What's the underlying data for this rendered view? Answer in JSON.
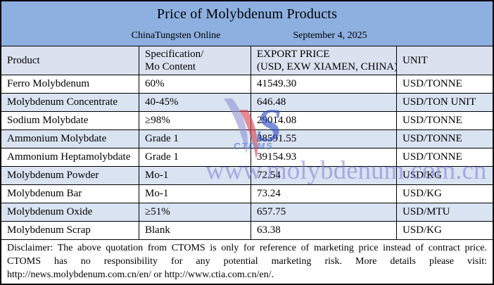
{
  "banner": {
    "title": "Price of Molybdenum Products",
    "source": "ChinaTungsten Online",
    "date": "September 4, 2025"
  },
  "table": {
    "headers": {
      "product": "Product",
      "spec_line1": "Specification/",
      "spec_line2": "Mo Content",
      "price_line1": "EXPORT PRICE",
      "price_line2": "(USD, EXW XIAMEN, CHINA)",
      "unit": "UNIT"
    },
    "rows": [
      {
        "product": "Ferro Molybdenum",
        "spec": "60%",
        "price": "41549.30",
        "unit": "USD/TONNE"
      },
      {
        "product": "Molybdenum Concentrate",
        "spec": "40-45%",
        "price": "646.48",
        "unit": "USD/TON UNIT"
      },
      {
        "product": "Sodium Molybdate",
        "spec": "≥98%",
        "price": "29014.08",
        "unit": "USD/TONNE"
      },
      {
        "product": "Ammonium Molybdate",
        "spec": "Grade 1",
        "price": "38591.55",
        "unit": "USD/TONNE"
      },
      {
        "product": "Ammonium Heptamolybdate",
        "spec": "Grade 1",
        "price": "39154.93",
        "unit": "USD/TONNE"
      },
      {
        "product": "Molybdenum Powder",
        "spec": "Mo-1",
        "price": "72.54",
        "unit": "USD/KG"
      },
      {
        "product": "Molybdenum Bar",
        "spec": "Mo-1",
        "price": "73.24",
        "unit": "USD/KG"
      },
      {
        "product": "Molybdenum Oxide",
        "spec": "≥51%",
        "price": "657.75",
        "unit": "USD/MTU"
      },
      {
        "product": "Molybdenum Scrap",
        "spec": "Blank",
        "price": "63.38",
        "unit": "USD/KG"
      }
    ]
  },
  "watermark": {
    "url_text": "www.molybdenum.com.cn",
    "logo_text": "CTOMS",
    "logo_s": "S"
  },
  "disclaimer": "Disclaimer: The above quotation from CTOMS is only for reference of marketing price instead of contract price. CTOMS has no responsibility for any potential marketing risk. More details please visit: http://news.molybdenum.com.cn/en/ or http://www.ctia.com.cn/en/.",
  "colors": {
    "banner_bg": "#8db0e0",
    "header_bg": "#dbe1ef",
    "row_alt_bg": "#d9e3f1",
    "watermark": "#8686d6",
    "border": "#000000"
  }
}
